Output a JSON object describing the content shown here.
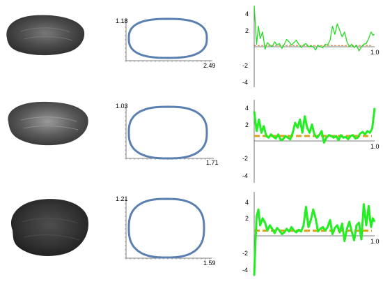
{
  "rows": [
    {
      "seed": {
        "shape": "elongated",
        "color_base": "#3b3b3b",
        "color_light": "#6e6e6e"
      },
      "outline": {
        "type": "line",
        "x_max_label": "2.49",
        "y_max_label": "1.18",
        "width": 2.49,
        "height": 1.18,
        "stroke_color": "#5b7fb0"
      },
      "curvature": {
        "type": "line",
        "xlim": [
          0,
          1
        ],
        "ylim": [
          -5,
          5
        ],
        "y_ticks": [
          "4",
          "2",
          "-2",
          "-4"
        ],
        "x_end_label": "1.0",
        "mean": 0.15,
        "line_color": "#22dd22",
        "mean_color": "#e06a1a",
        "thick": false,
        "x": [
          0,
          0.02,
          0.035,
          0.05,
          0.07,
          0.09,
          0.11,
          0.13,
          0.15,
          0.17,
          0.19,
          0.21,
          0.23,
          0.25,
          0.27,
          0.29,
          0.31,
          0.33,
          0.35,
          0.37,
          0.39,
          0.41,
          0.43,
          0.45,
          0.47,
          0.49,
          0.51,
          0.53,
          0.55,
          0.57,
          0.59,
          0.61,
          0.63,
          0.65,
          0.67,
          0.69,
          0.71,
          0.73,
          0.75,
          0.77,
          0.79,
          0.81,
          0.83,
          0.85,
          0.87,
          0.89,
          0.91,
          0.93,
          0.95,
          0.97,
          0.985,
          1.0
        ],
        "y": [
          5.0,
          0.3,
          2.5,
          1.0,
          1.8,
          -0.3,
          0.5,
          0.2,
          0.0,
          0.6,
          0.2,
          0.4,
          -0.2,
          0.3,
          0.9,
          0.6,
          0.2,
          0.5,
          0.8,
          0.3,
          -0.1,
          0.2,
          0.4,
          0.0,
          0.1,
          0.0,
          -0.4,
          0.2,
          0.0,
          -0.1,
          0.3,
          0.2,
          0.8,
          2.5,
          1.5,
          2.8,
          2.0,
          1.2,
          1.8,
          0.6,
          0.0,
          0.3,
          -0.1,
          0.2,
          -0.5,
          0.0,
          0.3,
          0.4,
          1.0,
          1.8,
          1.4,
          1.5
        ]
      }
    },
    {
      "seed": {
        "shape": "oval",
        "color_base": "#4a4a4a",
        "color_light": "#8a8a8a"
      },
      "outline": {
        "type": "line",
        "x_max_label": "1.71",
        "y_max_label": "1.03",
        "width": 1.71,
        "height": 1.03,
        "stroke_color": "#5b7fb0"
      },
      "curvature": {
        "type": "line",
        "xlim": [
          0,
          1
        ],
        "ylim": [
          -5,
          5
        ],
        "y_ticks": [
          "4",
          "2",
          "-2",
          "-4"
        ],
        "x_end_label": "1.0",
        "mean": 0.6,
        "line_color": "#22ee22",
        "mean_color": "#e0a01a",
        "thick": true,
        "x": [
          0,
          0.02,
          0.04,
          0.06,
          0.08,
          0.1,
          0.12,
          0.14,
          0.16,
          0.18,
          0.2,
          0.22,
          0.24,
          0.26,
          0.28,
          0.3,
          0.32,
          0.34,
          0.36,
          0.38,
          0.4,
          0.42,
          0.44,
          0.46,
          0.48,
          0.5,
          0.52,
          0.54,
          0.56,
          0.58,
          0.6,
          0.62,
          0.64,
          0.66,
          0.68,
          0.7,
          0.72,
          0.74,
          0.76,
          0.78,
          0.8,
          0.82,
          0.84,
          0.86,
          0.88,
          0.9,
          0.92,
          0.94,
          0.96,
          0.98,
          1.0
        ],
        "y": [
          3.6,
          1.2,
          2.6,
          1.0,
          1.8,
          0.6,
          0.4,
          0.8,
          0.5,
          0.3,
          0.8,
          0.1,
          0.2,
          0.6,
          0.4,
          0.2,
          1.0,
          2.2,
          1.6,
          2.6,
          1.0,
          3.0,
          1.6,
          1.0,
          2.0,
          0.8,
          0.4,
          0.7,
          1.2,
          -0.2,
          0.4,
          0.7,
          0.6,
          0.4,
          0.6,
          0.1,
          0.7,
          0.4,
          0.5,
          0.2,
          0.6,
          0.7,
          0.3,
          0.4,
          0.9,
          1.1,
          0.8,
          1.2,
          1.0,
          1.5,
          4.0
        ]
      }
    },
    {
      "seed": {
        "shape": "round",
        "color_base": "#2a2a2a",
        "color_light": "#555555"
      },
      "outline": {
        "type": "line",
        "x_max_label": "1.59",
        "y_max_label": "1.21",
        "width": 1.59,
        "height": 1.21,
        "stroke_color": "#5b7fb0"
      },
      "curvature": {
        "type": "line",
        "xlim": [
          0,
          1
        ],
        "ylim": [
          -5,
          5
        ],
        "y_ticks": [
          "4",
          "2",
          "-2",
          "-4"
        ],
        "x_end_label": "1.0",
        "mean": 0.6,
        "line_color": "#22ee22",
        "mean_color": "#e0a01a",
        "thick": true,
        "x": [
          0,
          0.01,
          0.02,
          0.035,
          0.05,
          0.07,
          0.09,
          0.11,
          0.13,
          0.15,
          0.17,
          0.19,
          0.21,
          0.23,
          0.25,
          0.27,
          0.29,
          0.31,
          0.33,
          0.35,
          0.37,
          0.39,
          0.41,
          0.43,
          0.45,
          0.47,
          0.49,
          0.51,
          0.53,
          0.55,
          0.57,
          0.59,
          0.61,
          0.63,
          0.65,
          0.67,
          0.69,
          0.71,
          0.73,
          0.75,
          0.77,
          0.79,
          0.81,
          0.83,
          0.85,
          0.87,
          0.89,
          0.91,
          0.93,
          0.95,
          0.97,
          0.985,
          1.0
        ],
        "y": [
          -4.5,
          -1.0,
          2.2,
          3.0,
          1.2,
          2.0,
          1.5,
          0.6,
          1.2,
          0.8,
          0.3,
          0.9,
          0.6,
          0.2,
          0.4,
          0.8,
          0.5,
          1.0,
          0.6,
          0.4,
          0.7,
          0.5,
          1.2,
          3.3,
          1.0,
          1.8,
          3.0,
          2.0,
          0.5,
          0.8,
          1.0,
          0.6,
          1.0,
          1.8,
          0.2,
          0.9,
          1.2,
          0.4,
          1.4,
          -0.6,
          0.8,
          1.6,
          0.5,
          -0.5,
          1.2,
          1.5,
          -0.4,
          3.6,
          1.2,
          3.4,
          1.0,
          2.0,
          1.6
        ]
      }
    }
  ]
}
